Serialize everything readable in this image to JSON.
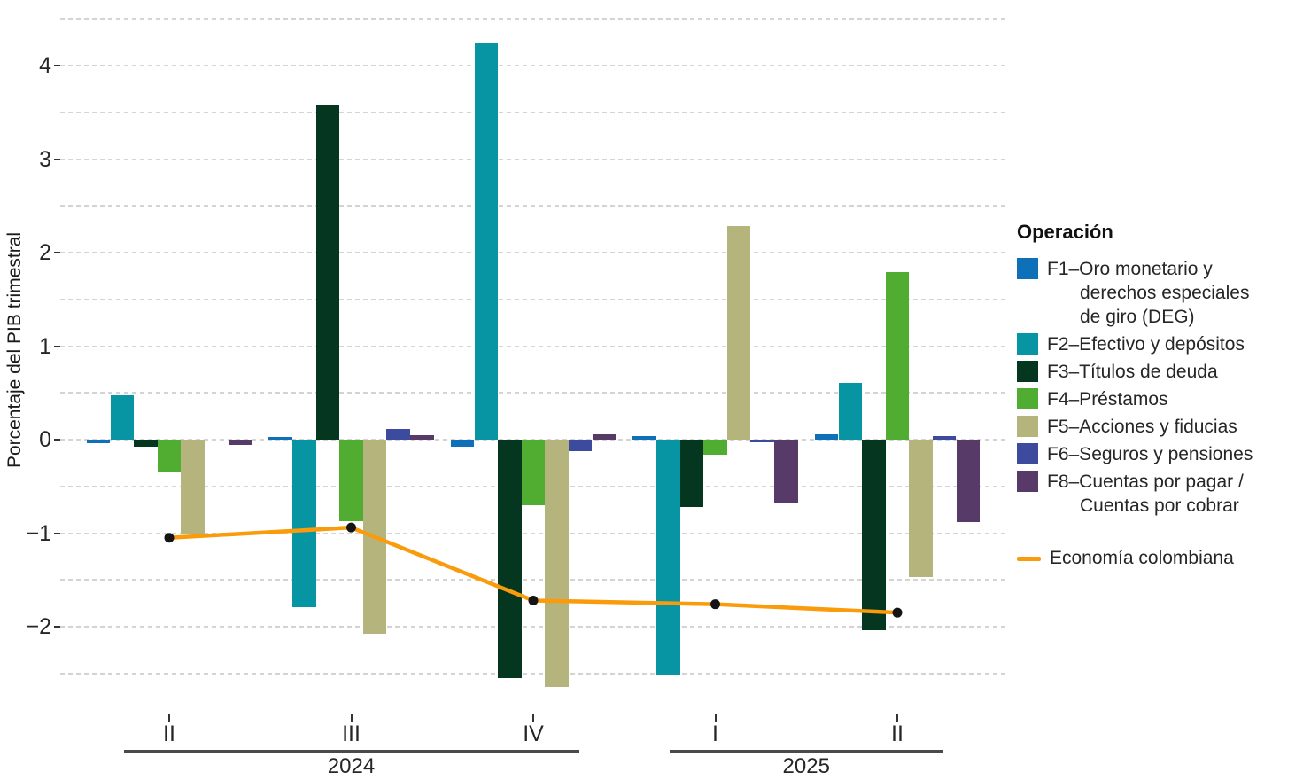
{
  "chart_data": {
    "type": "bar",
    "title": "",
    "ylabel": "Porcentaje del PIB trimestral",
    "categories": [
      "II 2024",
      "III 2024",
      "IV 2024",
      "I 2025",
      "II 2025"
    ],
    "series": [
      {
        "name": "F1–Oro monetario y derechos especiales de giro (DEG)",
        "color": "#0E70B8",
        "values": [
          -0.04,
          0.03,
          -0.08,
          0.04,
          0.06
        ]
      },
      {
        "name": "F2–Efectivo y depósitos",
        "color": "#0895A3",
        "values": [
          0.47,
          -1.79,
          4.25,
          -2.51,
          0.61
        ]
      },
      {
        "name": "F3–Títulos de deuda",
        "color": "#053620",
        "values": [
          -0.08,
          3.58,
          -2.55,
          -0.72,
          -2.04
        ]
      },
      {
        "name": "F4–Préstamos",
        "color": "#50AD32",
        "values": [
          -0.35,
          -0.87,
          -0.7,
          -0.16,
          1.79
        ]
      },
      {
        "name": "F5–Acciones y fiducias",
        "color": "#B6B47D",
        "values": [
          -1.0,
          -2.08,
          -2.64,
          2.28,
          -1.47
        ]
      },
      {
        "name": "F6–Seguros y pensiones",
        "color": "#3D4B9F",
        "values": [
          0.0,
          0.11,
          -0.12,
          -0.03,
          0.04
        ]
      },
      {
        "name": "F8–Cuentas por pagar / Cuentas por cobrar",
        "color": "#573A68",
        "values": [
          -0.06,
          0.05,
          0.06,
          -0.68,
          -0.88
        ]
      }
    ],
    "line_series": {
      "name": "Economía colombiana",
      "color": "#F99B0B",
      "point_color": "#141414",
      "values": [
        -1.05,
        -0.94,
        -1.72,
        -1.76,
        -1.85
      ]
    },
    "ylim": [
      -2.8,
      4.6
    ],
    "grid_step": 0.5,
    "grid_range": [
      -2.5,
      4.5
    ],
    "grid_on": true,
    "legend_position": "right"
  },
  "y_axis": {
    "title": "Porcentaje del PIB trimestral",
    "ticks": [
      {
        "label": "4",
        "value": 4
      },
      {
        "label": "3",
        "value": 3
      },
      {
        "label": "2",
        "value": 2
      },
      {
        "label": "1",
        "value": 1
      },
      {
        "label": "0",
        "value": 0
      },
      {
        "label": "−1",
        "value": -1
      },
      {
        "label": "−2",
        "value": -2
      }
    ]
  },
  "x_axis": {
    "year_groups": [
      {
        "year": "2024",
        "quarters": [
          "II",
          "III",
          "IV"
        ]
      },
      {
        "year": "2025",
        "quarters": [
          "I",
          "II"
        ]
      }
    ]
  },
  "legend": {
    "title": "Operación",
    "items": [
      {
        "color": "#0E70B8",
        "lines": [
          "F1–Oro monetario y",
          "derechos especiales",
          "de giro (DEG)"
        ]
      },
      {
        "color": "#0895A3",
        "lines": [
          "F2–Efectivo y depósitos"
        ]
      },
      {
        "color": "#053620",
        "lines": [
          "F3–Títulos de deuda"
        ]
      },
      {
        "color": "#50AD32",
        "lines": [
          "F4–Préstamos"
        ]
      },
      {
        "color": "#B6B47D",
        "lines": [
          "F5–Acciones y fiducias"
        ]
      },
      {
        "color": "#3D4B9F",
        "lines": [
          "F6–Seguros y pensiones"
        ]
      },
      {
        "color": "#573A68",
        "lines": [
          "F8–Cuentas por pagar /",
          "Cuentas por cobrar"
        ]
      }
    ],
    "line_item": {
      "color": "#F99B0B",
      "label": "Economía colombiana"
    }
  }
}
